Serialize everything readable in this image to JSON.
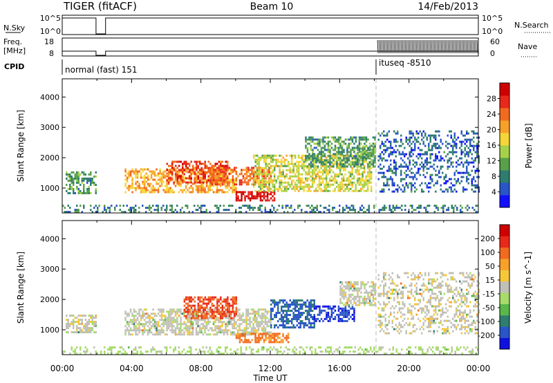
{
  "header": {
    "title": "TIGER (fitACF)",
    "beam": "Beam 10",
    "date": "14/Feb/2013"
  },
  "summary_panel": {
    "nsky_label": "N.Sky",
    "nsearch_label": "N.Search",
    "freq_label_1": "Freq.",
    "freq_label_2": "[MHz]",
    "nave_label": "Nave",
    "cpid_label": "CPID",
    "nsky_ticks": [
      "10^5",
      "10^0"
    ],
    "nsearch_ticks": [
      "10^5",
      "10^0"
    ],
    "freq_ticks": [
      "18",
      "8"
    ],
    "nave_ticks": [
      "60",
      "0"
    ],
    "cpid_segments": [
      {
        "label": "normal (fast) 151",
        "start_hour": 0,
        "end_hour": 18.1
      },
      {
        "label": "ituseq -8510",
        "start_hour": 18.1,
        "end_hour": 24
      }
    ]
  },
  "chart_data": [
    {
      "type": "heatmap",
      "title": "",
      "xlabel": "Time UT",
      "ylabel": "Slant Range [km]",
      "xlim": [
        0,
        24
      ],
      "ylim": [
        180,
        4600
      ],
      "x_ticks": [
        "00:00",
        "04:00",
        "08:00",
        "12:00",
        "16:00",
        "20:00",
        "00:00"
      ],
      "y_ticks": [
        "1000",
        "2000",
        "3000",
        "4000"
      ],
      "colorbar": {
        "label": "Power [dB]",
        "ticks": [
          "4",
          "8",
          "12",
          "16",
          "20",
          "24",
          "28"
        ],
        "range": [
          0,
          32
        ],
        "colors": [
          "#1010ff",
          "#2a55c8",
          "#2e7d6e",
          "#5aa04a",
          "#a6d24a",
          "#f5d63a",
          "#f7a02a",
          "#f26a1f",
          "#e8281a",
          "#d00000"
        ]
      },
      "echo_regions": [
        {
          "t0": 0.2,
          "t1": 1.9,
          "r0": 850,
          "r1": 1550,
          "value": 10
        },
        {
          "t0": 3.6,
          "t1": 10.0,
          "r0": 850,
          "r1": 1650,
          "value": 20
        },
        {
          "t0": 6.0,
          "t1": 9.5,
          "r0": 1200,
          "r1": 1900,
          "value": 26
        },
        {
          "t0": 8.5,
          "t1": 12.0,
          "r0": 1100,
          "r1": 1700,
          "value": 24
        },
        {
          "t0": 10.0,
          "t1": 12.2,
          "r0": 600,
          "r1": 900,
          "value": 30
        },
        {
          "t0": 11.0,
          "t1": 17.8,
          "r0": 900,
          "r1": 2100,
          "value": 16
        },
        {
          "t0": 14.0,
          "t1": 18.0,
          "r0": 1700,
          "r1": 2700,
          "value": 10
        },
        {
          "t0": 17.0,
          "t1": 18.0,
          "r0": 2000,
          "r1": 2400,
          "value": 12
        },
        {
          "t0": 18.2,
          "t1": 24.0,
          "r0": 900,
          "r1": 2900,
          "value": 6
        },
        {
          "t0": 0.0,
          "t1": 24.0,
          "r0": 200,
          "r1": 450,
          "value": 8
        }
      ]
    },
    {
      "type": "heatmap",
      "title": "",
      "xlabel": "Time UT",
      "ylabel": "Slant Range [km]",
      "xlim": [
        0,
        24
      ],
      "ylim": [
        180,
        4600
      ],
      "x_ticks": [
        "00:00",
        "04:00",
        "08:00",
        "12:00",
        "16:00",
        "20:00",
        "00:00"
      ],
      "y_ticks": [
        "1000",
        "2000",
        "3000",
        "4000"
      ],
      "colorbar": {
        "label": "Velocity [m s^-1]",
        "ticks": [
          "200",
          "100",
          "50",
          "15",
          "-15",
          "-50",
          "-100",
          "-200"
        ],
        "range": [
          -250,
          250
        ],
        "colors": [
          "#1010e0",
          "#2a55c8",
          "#2e7d6e",
          "#5ab84a",
          "#a8dc6a",
          "#c0c0b8",
          "#f5c83a",
          "#f7a02a",
          "#f26a1f",
          "#e8281a",
          "#d00000"
        ]
      },
      "echo_regions": [
        {
          "t0": 0.2,
          "t1": 1.9,
          "r0": 900,
          "r1": 1500,
          "value": 0
        },
        {
          "t0": 3.6,
          "t1": 12.0,
          "r0": 850,
          "r1": 1700,
          "value": 0
        },
        {
          "t0": 7.0,
          "t1": 10.0,
          "r0": 1400,
          "r1": 2100,
          "value": 160
        },
        {
          "t0": 10.0,
          "t1": 13.0,
          "r0": 600,
          "r1": 900,
          "value": 120
        },
        {
          "t0": 12.0,
          "t1": 14.5,
          "r0": 1100,
          "r1": 2000,
          "value": -170
        },
        {
          "t0": 14.5,
          "t1": 16.8,
          "r0": 1300,
          "r1": 1800,
          "value": -200
        },
        {
          "t0": 16.0,
          "t1": 18.0,
          "r0": 1800,
          "r1": 2600,
          "value": 0
        },
        {
          "t0": 18.2,
          "t1": 24.0,
          "r0": 900,
          "r1": 2900,
          "value": 5
        },
        {
          "t0": 0.0,
          "t1": 24.0,
          "r0": 200,
          "r1": 450,
          "value": -40
        }
      ]
    }
  ]
}
